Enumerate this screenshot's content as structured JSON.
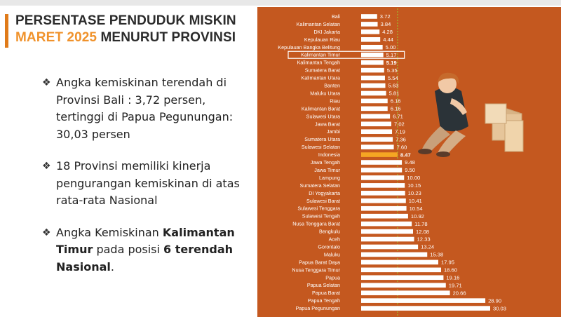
{
  "title": {
    "line1": "PERSENTASE PENDUDUK MISKIN",
    "line2_highlight": "MARET 2025",
    "line2_rest": " MENURUT PROVINSI"
  },
  "bullets": {
    "b1": {
      "mark": "❖",
      "text": "Angka kemiskinan terendah di Provinsi Bali : 3,72 persen, tertinggi di Papua Pegunungan: 30,03 persen"
    },
    "b2": {
      "mark": "❖",
      "text": "18 Provinsi memiliki kinerja pengurangan kemiskinan di atas rata-rata Nasional"
    },
    "b3": {
      "mark": "❖",
      "pre": "Angka Kemiskinan ",
      "bold1": "Kalimantan Timur",
      "mid": " pada posisi ",
      "bold2": "6 terendah Nasional",
      "post": "."
    }
  },
  "colors": {
    "panel": "#c4581f",
    "bar": "#ffffff",
    "highlight_bar": "#f5a623",
    "reference_line": "#9acd32",
    "title_accent": "#f0922b"
  },
  "chart_data": {
    "type": "bar",
    "orientation": "horizontal",
    "categories": [
      "Bali",
      "Kalimantan Selatan",
      "DKI Jakarta",
      "Kepulauan Riau",
      "Kepulauan Bangka Belitung",
      "Kalimantan Timur",
      "Kalimantan Tengah",
      "Sumatera Barat",
      "Kalimantan Utara",
      "Banten",
      "Maluku Utara",
      "Riau",
      "Kalimantan Barat",
      "Sulawesi Utara",
      "Jawa Barat",
      "Jambi",
      "Sumatera Utara",
      "Sulawesi Selatan",
      "Indonesia",
      "Jawa Tengah",
      "Jawa Timur",
      "Lampung",
      "Sumatera Selatan",
      "DI Yogyakarta",
      "Sulawesi Barat",
      "Sulawesi Tenggara",
      "Sulawesi Tengah",
      "Nusa Tenggara Barat",
      "Bengkulu",
      "Aceh",
      "Gorontalo",
      "Maluku",
      "Papua Barat Daya",
      "Nusa Tenggara Timur",
      "Papua",
      "Papua Selatan",
      "Papua Barat",
      "Papua Tengah",
      "Papua Pegunungan"
    ],
    "values": [
      3.72,
      3.84,
      4.28,
      4.44,
      5.0,
      5.17,
      5.19,
      5.35,
      5.54,
      5.63,
      5.81,
      6.16,
      6.16,
      6.71,
      7.02,
      7.19,
      7.36,
      7.6,
      8.47,
      9.48,
      9.5,
      10.0,
      10.15,
      10.23,
      10.41,
      10.54,
      10.92,
      11.78,
      12.08,
      12.33,
      13.24,
      15.38,
      17.95,
      18.6,
      19.16,
      19.71,
      20.66,
      28.9,
      30.03
    ],
    "value_labels": [
      "3.72",
      "3.84",
      "4.28",
      "4.44",
      "5.00",
      "5.17",
      "5.19",
      "5.35",
      "5.54",
      "5.63",
      "5.81",
      "6.16",
      "6.16",
      "6.71",
      "7.02",
      "7.19",
      "7.36",
      "7.60",
      "8.47",
      "9.48",
      "9.50",
      "10.00",
      "10.15",
      "10.23",
      "10.41",
      "10.54",
      "10.92",
      "11.78",
      "12.08",
      "12.33",
      "13.24",
      "15.38",
      "17.95",
      "18.60",
      "19.16",
      "19.71",
      "20.66",
      "28.90",
      "30.03"
    ],
    "highlight_category": "Indonesia",
    "boxed_category": "Kalimantan Timur",
    "reference_value": 8.47,
    "xlim": [
      0,
      31
    ],
    "title": "",
    "xlabel": "",
    "ylabel": "",
    "grid": false,
    "legend": "none"
  }
}
